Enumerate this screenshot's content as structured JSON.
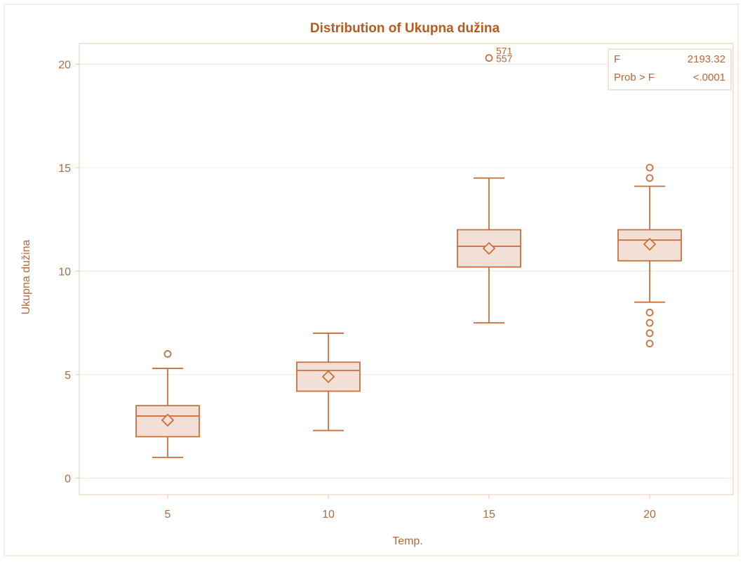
{
  "chart_data": {
    "type": "box",
    "title": "Distribution of Ukupna dužina",
    "xlabel": "Temp.",
    "ylabel": "Ukupna dužina",
    "categories": [
      "5",
      "10",
      "15",
      "20"
    ],
    "ylim": [
      -0.8,
      21
    ],
    "yticks": [
      0,
      5,
      10,
      15,
      20
    ],
    "grid": true,
    "boxes": [
      {
        "category": "5",
        "min": 1.0,
        "q1": 2.0,
        "median": 3.0,
        "q3": 3.5,
        "max": 5.3,
        "mean": 2.8,
        "outliers": [
          6.0
        ]
      },
      {
        "category": "10",
        "min": 2.3,
        "q1": 4.2,
        "median": 5.2,
        "q3": 5.6,
        "max": 7.0,
        "mean": 4.9,
        "outliers": []
      },
      {
        "category": "15",
        "min": 7.5,
        "q1": 10.2,
        "median": 11.2,
        "q3": 12.0,
        "max": 14.5,
        "mean": 11.1,
        "outliers": [
          20.3
        ]
      },
      {
        "category": "20",
        "min": 8.5,
        "q1": 10.5,
        "median": 11.5,
        "q3": 12.0,
        "max": 14.1,
        "mean": 11.3,
        "outliers": [
          15.0,
          14.5,
          8.0,
          7.5,
          7.0,
          6.5
        ]
      }
    ],
    "outlier_labels": [
      {
        "category": "15",
        "value": 20.3,
        "labels": [
          "571",
          "557"
        ]
      }
    ],
    "inset": {
      "position": "top-right",
      "rows": [
        {
          "label": "F",
          "value": "2193.32"
        },
        {
          "label": "Prob > F",
          "value": "<.0001"
        }
      ]
    },
    "colors": {
      "stroke": "#c8703c",
      "fill": "#f2e0d6",
      "title": "#b85a1e",
      "text": "#b5683a",
      "axis": "#e8c9b4",
      "grid": "#f6e7dc",
      "frame": "#f0d5c3"
    }
  }
}
